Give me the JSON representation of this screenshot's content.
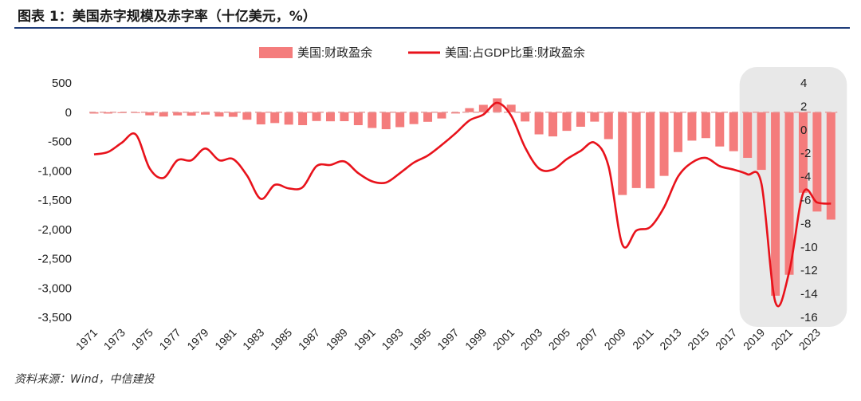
{
  "title": "图表 1：美国赤字规模及赤字率（十亿美元，%）",
  "source": "资料来源：Wind，中信建投",
  "colors": {
    "bar": "#f47c7c",
    "line": "#e8121b",
    "highlight": "#e8e8e8",
    "rule": "#1f3d7a"
  },
  "chart_data": {
    "type": "bar",
    "legend_position": "top-center",
    "series": [
      {
        "name": "美国:财政盈余",
        "type": "bar",
        "axis": "left",
        "x": [
          1971,
          1972,
          1973,
          1974,
          1975,
          1976,
          1977,
          1978,
          1979,
          1980,
          1981,
          1982,
          1983,
          1984,
          1985,
          1986,
          1987,
          1988,
          1989,
          1990,
          1991,
          1992,
          1993,
          1994,
          1995,
          1996,
          1997,
          1998,
          1999,
          2000,
          2001,
          2002,
          2003,
          2004,
          2005,
          2006,
          2007,
          2008,
          2009,
          2010,
          2011,
          2012,
          2013,
          2014,
          2015,
          2016,
          2017,
          2018,
          2019,
          2020,
          2021,
          2022,
          2023,
          2024
        ],
        "values": [
          -23,
          -23,
          -15,
          -6,
          -53,
          -74,
          -54,
          -59,
          -41,
          -74,
          -79,
          -128,
          -208,
          -185,
          -212,
          -221,
          -150,
          -155,
          -153,
          -221,
          -269,
          -290,
          -255,
          -203,
          -164,
          -107,
          -22,
          69,
          126,
          236,
          128,
          -158,
          -378,
          -413,
          -318,
          -248,
          -161,
          -459,
          -1413,
          -1294,
          -1300,
          -1087,
          -680,
          -485,
          -442,
          -585,
          -665,
          -779,
          -984,
          -3132,
          -2775,
          -1375,
          -1695,
          -1833
        ]
      },
      {
        "name": "美国:占GDP比重:财政盈余",
        "type": "line",
        "axis": "right",
        "x": [
          1971,
          1972,
          1973,
          1974,
          1975,
          1976,
          1977,
          1978,
          1979,
          1980,
          1981,
          1982,
          1983,
          1984,
          1985,
          1986,
          1987,
          1988,
          1989,
          1990,
          1991,
          1992,
          1993,
          1994,
          1995,
          1996,
          1997,
          1998,
          1999,
          2000,
          2001,
          2002,
          2003,
          2004,
          2005,
          2006,
          2007,
          2008,
          2009,
          2010,
          2011,
          2012,
          2013,
          2014,
          2015,
          2016,
          2017,
          2018,
          2019,
          2020,
          2021,
          2022,
          2023,
          2024
        ],
        "values": [
          -2.1,
          -1.9,
          -1.1,
          -0.4,
          -3.3,
          -4.1,
          -2.6,
          -2.6,
          -1.6,
          -2.6,
          -2.5,
          -3.9,
          -5.9,
          -4.7,
          -5.0,
          -4.9,
          -3.1,
          -3.0,
          -2.7,
          -3.7,
          -4.4,
          -4.5,
          -3.7,
          -2.8,
          -2.2,
          -1.3,
          -0.3,
          0.8,
          1.3,
          2.3,
          1.2,
          -1.5,
          -3.3,
          -3.4,
          -2.5,
          -1.8,
          -1.1,
          -3.1,
          -9.8,
          -8.6,
          -8.3,
          -6.6,
          -4.0,
          -2.8,
          -2.4,
          -3.1,
          -3.4,
          -3.8,
          -4.6,
          -14.7,
          -12.1,
          -5.4,
          -6.2,
          -6.3
        ]
      }
    ],
    "y_left": {
      "ylim": [
        -3500,
        500
      ],
      "ticks": [
        500,
        0,
        -500,
        -1000,
        -1500,
        -2000,
        -2500,
        -3000,
        -3500
      ],
      "tick_labels": [
        "500",
        "0",
        "-500",
        "-1,000",
        "-1,500",
        "-2,000",
        "-2,500",
        "-3,000",
        "-3,500"
      ]
    },
    "y_right": {
      "ylim": [
        -16,
        4
      ],
      "ticks": [
        4,
        2,
        0,
        -2,
        -4,
        -6,
        -8,
        -10,
        -12,
        -14,
        -16
      ],
      "tick_labels": [
        "4",
        "2",
        "0",
        "-2",
        "-4",
        "-6",
        "-8",
        "-10",
        "-12",
        "-14",
        "-16"
      ]
    },
    "x_tick_labels": [
      "1971",
      "1973",
      "1975",
      "1977",
      "1979",
      "1981",
      "1983",
      "1985",
      "1987",
      "1989",
      "1991",
      "1993",
      "1995",
      "1997",
      "1999",
      "2001",
      "2003",
      "2005",
      "2007",
      "2009",
      "2011",
      "2013",
      "2015",
      "2017",
      "2019",
      "2021",
      "2023"
    ],
    "highlight_range": [
      2018,
      2024
    ],
    "grid": false
  }
}
